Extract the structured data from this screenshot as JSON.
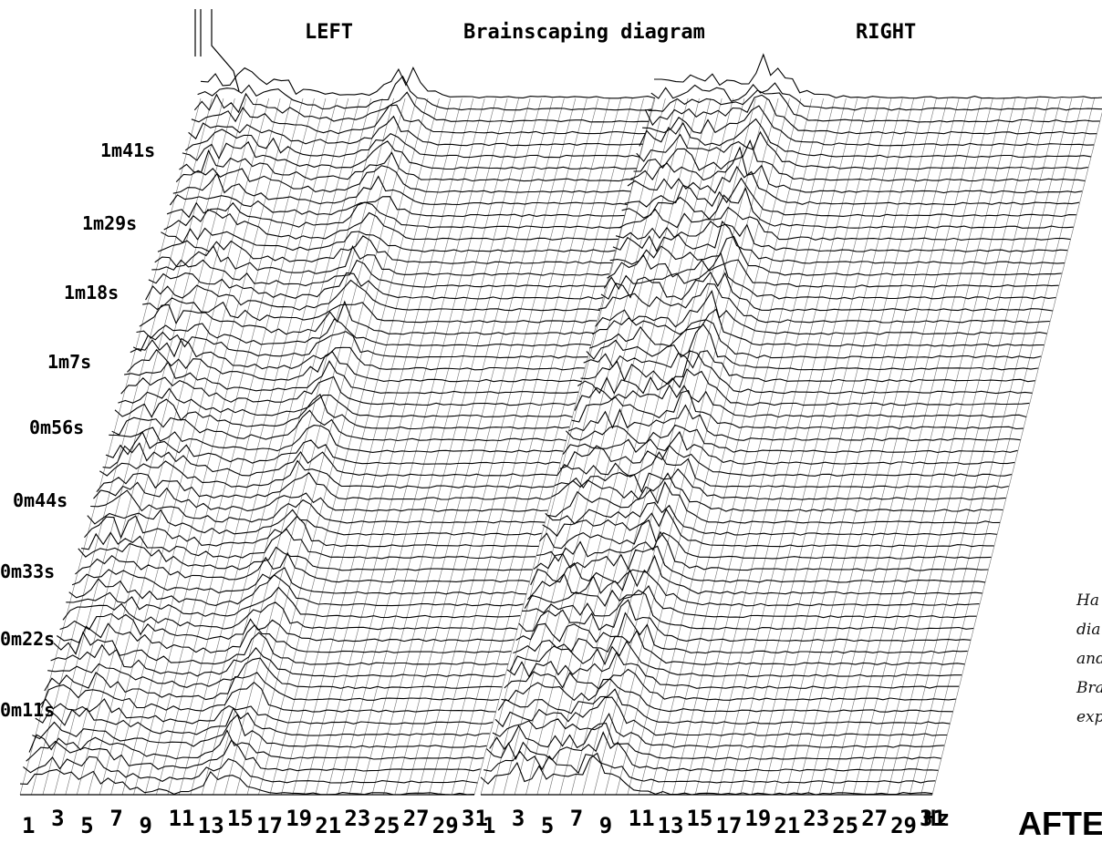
{
  "chart_data": {
    "type": "waterfall-spectrogram",
    "title": "Brainscaping diagram",
    "panels": [
      {
        "name": "LEFT",
        "peak_hz": 15,
        "peak_level": 0.75,
        "low_band_level": 0.55
      },
      {
        "name": "RIGHT",
        "peak_hz": 9,
        "peak_level": 0.85,
        "low_band_level": 0.6
      }
    ],
    "y_tick_labels": [
      "1m41s",
      "1m29s",
      "1m18s",
      "1m7s",
      "0m56s",
      "0m44s",
      "0m33s",
      "0m22s",
      "0m11s"
    ],
    "x_tick_labels": [
      "1",
      "3",
      "5",
      "7",
      "9",
      "11",
      "13",
      "15",
      "17",
      "19",
      "21",
      "23",
      "25",
      "27",
      "29",
      "31"
    ],
    "x_unit": "Hz",
    "x_range_hz": [
      1,
      32
    ],
    "trace_count": 60,
    "grid": "on"
  },
  "caption": {
    "lines": [
      "Ha",
      "dia",
      "and",
      "Bra",
      "exp"
    ]
  },
  "after_label": "AFTE",
  "colors": {
    "ink": "#000000",
    "paper": "#ffffff"
  }
}
